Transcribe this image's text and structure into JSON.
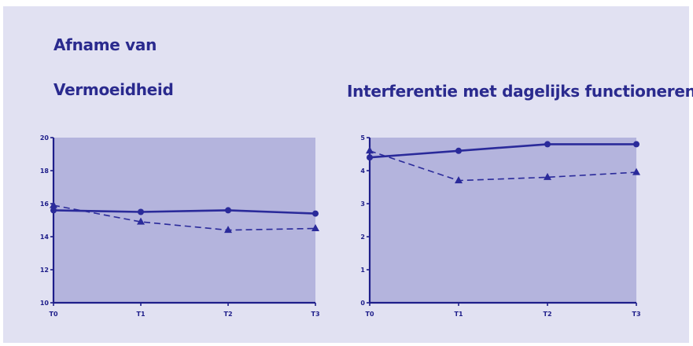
{
  "page": {
    "title_line1": "Afname van",
    "colors": {
      "panel": "#e1e1f2",
      "plot": "#b4b4dd",
      "series": "#2a2a9a",
      "text": "#2a2a8e"
    }
  },
  "chart_data": [
    {
      "type": "line",
      "title": "Vermoeidheid",
      "categories": [
        "T0",
        "T1",
        "T2",
        "T3"
      ],
      "series": [
        {
          "style": "solid",
          "marker": "circle",
          "values": [
            15.6,
            15.5,
            15.6,
            15.4
          ]
        },
        {
          "style": "dashed",
          "marker": "triangle",
          "values": [
            15.9,
            14.9,
            14.4,
            14.5
          ]
        }
      ],
      "ylim": [
        10,
        20
      ],
      "yticks": [
        10,
        12,
        14,
        16,
        18,
        20
      ],
      "xlabel": "",
      "ylabel": "",
      "grid": false,
      "legend": "none"
    },
    {
      "type": "line",
      "title": "Interferentie met dagelijks functioneren",
      "categories": [
        "T0",
        "T1",
        "T2",
        "T3"
      ],
      "series": [
        {
          "style": "solid",
          "marker": "circle",
          "values": [
            4.4,
            4.6,
            4.8,
            4.8
          ]
        },
        {
          "style": "dashed",
          "marker": "triangle",
          "values": [
            4.6,
            3.7,
            3.8,
            3.95
          ]
        }
      ],
      "ylim": [
        0,
        5
      ],
      "yticks": [
        0,
        1,
        2,
        3,
        4,
        5
      ],
      "xlabel": "",
      "ylabel": "",
      "grid": false,
      "legend": "none"
    }
  ]
}
